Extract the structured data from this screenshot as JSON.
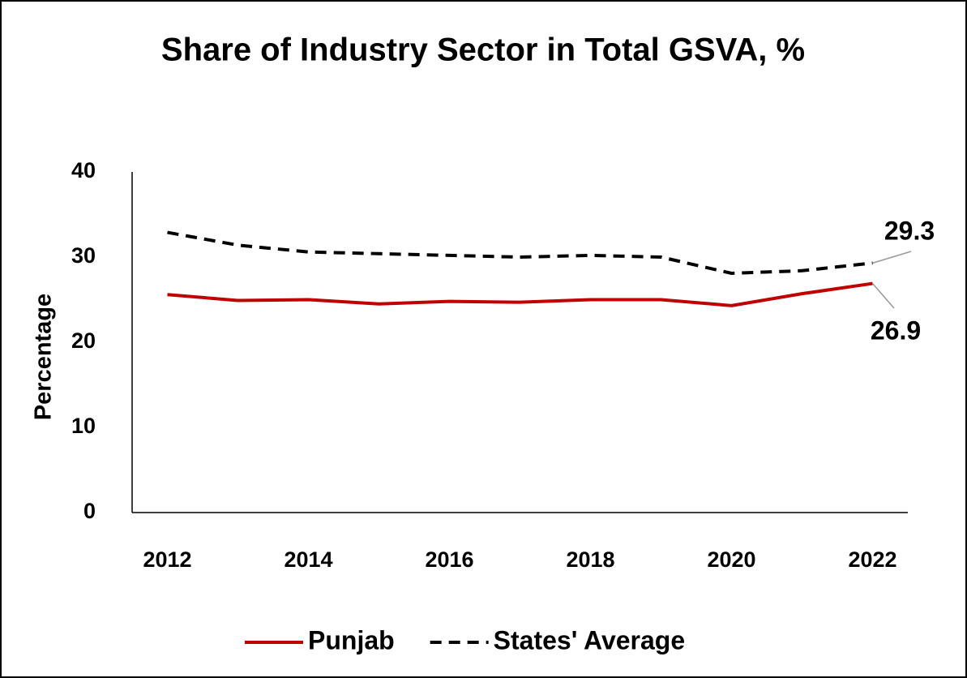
{
  "chart_data": {
    "type": "line",
    "title": "Share of Industry Sector in Total GSVA, %",
    "y_label": "Percentage",
    "categories": [
      "2012",
      null,
      "2014",
      null,
      "2016",
      null,
      "2018",
      null,
      "2020",
      null,
      "2022"
    ],
    "series": [
      {
        "name": "Punjab",
        "color": "#c00000",
        "dash": false,
        "values": [
          25.6,
          24.9,
          25.0,
          24.5,
          24.8,
          24.7,
          25.0,
          25.0,
          24.3,
          25.7,
          26.9
        ]
      },
      {
        "name": "States' Average",
        "color": "#000000",
        "dash": true,
        "values": [
          32.9,
          31.4,
          30.6,
          30.4,
          30.2,
          30.0,
          30.2,
          30.0,
          28.1,
          28.4,
          29.3
        ]
      }
    ],
    "ylim": [
      0,
      40
    ],
    "yticks": [
      0,
      10,
      20,
      30,
      40
    ],
    "grid": false,
    "legend": "bottom"
  }
}
